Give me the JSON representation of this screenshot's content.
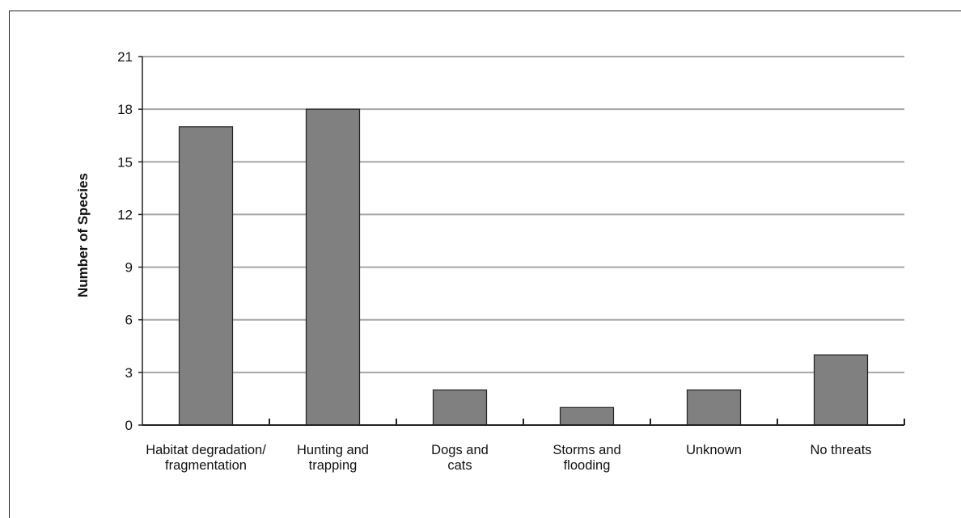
{
  "chart_data": {
    "type": "bar",
    "title": "",
    "xlabel": "",
    "ylabel": "Number of Species",
    "categories": [
      [
        "Habitat degradation/",
        "fragmentation"
      ],
      [
        "Hunting and",
        "trapping"
      ],
      [
        "Dogs and",
        "cats"
      ],
      [
        "Storms and",
        "flooding"
      ],
      [
        "Unknown"
      ],
      [
        "No threats"
      ]
    ],
    "values": [
      17,
      18,
      2,
      1,
      2,
      4
    ],
    "ylim": [
      0,
      21
    ],
    "yticks": [
      0,
      3,
      6,
      9,
      12,
      15,
      18,
      21
    ],
    "grid": true,
    "colors": {
      "bar": "#808080",
      "bar_stroke": "#222222",
      "grid": "#a6a6a6",
      "axis": "#222222"
    }
  }
}
